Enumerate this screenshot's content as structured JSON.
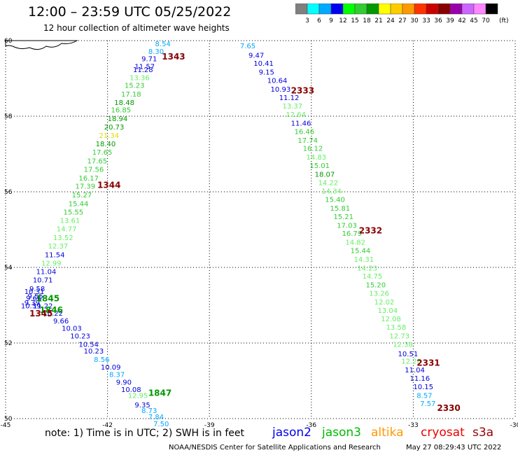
{
  "header": {
    "title": "12:00 – 23:59 UTC 05/25/2022",
    "subtitle": "12 hour collection of altimeter wave heights"
  },
  "legend": {
    "ticks": [
      "3",
      "6",
      "9",
      "12",
      "15",
      "18",
      "21",
      "24",
      "27",
      "30",
      "33",
      "36",
      "39",
      "42",
      "45",
      "70"
    ],
    "unit": "(ft)",
    "colors": [
      "#808080",
      "#00ffff",
      "#00aaff",
      "#0000ee",
      "#00ff00",
      "#33cc33",
      "#009900",
      "#ffff00",
      "#ffcc00",
      "#ff9900",
      "#ff3300",
      "#cc0000",
      "#880000",
      "#9900aa",
      "#cc66ff",
      "#ff88ff",
      "#000000"
    ]
  },
  "footer": {
    "note": "note:  1) Time is in UTC;  2) SWH is in feet",
    "credit": "NOAA/NESDIS Center for Satellite Applications and Research",
    "stamp": "May 27 08:29:43 UTC 2022"
  },
  "satellites": {
    "jason2": "jason2",
    "jason3": "jason3",
    "altika": "altika",
    "cryosat": "cryosat",
    "s3a": "s3a"
  },
  "chart_data": {
    "type": "scatter",
    "xlim": [
      -45,
      -30
    ],
    "ylim": [
      50,
      60
    ],
    "x_ticks": [
      -45,
      -42,
      -39,
      -36,
      -33,
      -30
    ],
    "y_ticks": [
      50,
      52,
      54,
      56,
      58,
      60
    ],
    "x_tick_labels": [
      "-45",
      "-42",
      "-39",
      "-36",
      "-33",
      "-30"
    ],
    "y_tick_labels": [
      "50",
      "52",
      "54",
      "56",
      "58",
      "60"
    ],
    "grid": true,
    "pass_labels": [
      {
        "label": "1343",
        "lon": -40.4,
        "lat": 59.5,
        "color": "#880000"
      },
      {
        "label": "1344",
        "lon": -42.3,
        "lat": 56.1,
        "color": "#880000"
      },
      {
        "label": "1845",
        "lon": -44.1,
        "lat": 53.1,
        "color": "#009900"
      },
      {
        "label": "1846",
        "lon": -44.0,
        "lat": 52.8,
        "color": "#009900"
      },
      {
        "label": "1345",
        "lon": -44.3,
        "lat": 52.7,
        "color": "#880000"
      },
      {
        "label": "1847",
        "lon": -40.8,
        "lat": 50.6,
        "color": "#009900"
      },
      {
        "label": "2333",
        "lon": -36.6,
        "lat": 58.6,
        "color": "#880000"
      },
      {
        "label": "2332",
        "lon": -34.6,
        "lat": 54.9,
        "color": "#880000"
      },
      {
        "label": "2331",
        "lon": -32.9,
        "lat": 51.4,
        "color": "#880000"
      },
      {
        "label": "2330",
        "lon": -32.3,
        "lat": 50.2,
        "color": "#880000"
      }
    ],
    "series": [
      {
        "points": [
          {
            "lon": -40.6,
            "lat": 59.85,
            "v": "8.54"
          },
          {
            "lon": -40.8,
            "lat": 59.65,
            "v": "8.30"
          },
          {
            "lon": -41.0,
            "lat": 59.45,
            "v": "9.71"
          },
          {
            "lon": -41.2,
            "lat": 59.25,
            "v": "11.57"
          },
          {
            "lon": -41.25,
            "lat": 59.17,
            "v": "11.28"
          },
          {
            "lon": -41.35,
            "lat": 58.95,
            "v": "13.36"
          },
          {
            "lon": -41.5,
            "lat": 58.75,
            "v": "15.23"
          },
          {
            "lon": -41.6,
            "lat": 58.52,
            "v": "17.18"
          },
          {
            "lon": -41.8,
            "lat": 58.3,
            "v": "18.48"
          },
          {
            "lon": -41.9,
            "lat": 58.1,
            "v": "16.85"
          },
          {
            "lon": -42.0,
            "lat": 57.87,
            "v": "18.94"
          },
          {
            "lon": -42.1,
            "lat": 57.65,
            "v": "20.73"
          },
          {
            "lon": -42.25,
            "lat": 57.43,
            "v": "21.34"
          },
          {
            "lon": -42.35,
            "lat": 57.2,
            "v": "18.40"
          },
          {
            "lon": -42.45,
            "lat": 56.98,
            "v": "17.65"
          },
          {
            "lon": -42.6,
            "lat": 56.75,
            "v": "17.65"
          },
          {
            "lon": -42.7,
            "lat": 56.53,
            "v": "17.56"
          },
          {
            "lon": -42.85,
            "lat": 56.3,
            "v": "16.17"
          },
          {
            "lon": -42.95,
            "lat": 56.08,
            "v": "17.39"
          },
          {
            "lon": -43.05,
            "lat": 55.85,
            "v": "15.27"
          },
          {
            "lon": -43.15,
            "lat": 55.62,
            "v": "15.44"
          },
          {
            "lon": -43.3,
            "lat": 55.4,
            "v": "15.55"
          },
          {
            "lon": -43.4,
            "lat": 55.18,
            "v": "13.61"
          },
          {
            "lon": -43.5,
            "lat": 54.95,
            "v": "14.77"
          },
          {
            "lon": -43.6,
            "lat": 54.72,
            "v": "13.52"
          },
          {
            "lon": -43.75,
            "lat": 54.5,
            "v": "12.37"
          },
          {
            "lon": -43.85,
            "lat": 54.27,
            "v": "11.54"
          },
          {
            "lon": -43.95,
            "lat": 54.05,
            "v": "12.99"
          },
          {
            "lon": -44.1,
            "lat": 53.82,
            "v": "11.04"
          },
          {
            "lon": -44.2,
            "lat": 53.6,
            "v": "10.71"
          },
          {
            "lon": -44.3,
            "lat": 53.37,
            "v": "9.58"
          },
          {
            "lon": -44.45,
            "lat": 53.3,
            "v": "10.31"
          },
          {
            "lon": -44.35,
            "lat": 53.18,
            "v": "9.55"
          },
          {
            "lon": -44.4,
            "lat": 53.12,
            "v": "9.66"
          },
          {
            "lon": -44.45,
            "lat": 53.0,
            "v": "9.39"
          },
          {
            "lon": -44.55,
            "lat": 52.92,
            "v": "10.39"
          },
          {
            "lon": -44.2,
            "lat": 52.92,
            "v": "11.22"
          },
          {
            "lon": -43.9,
            "lat": 52.72,
            "v": "10.22"
          },
          {
            "lon": -43.6,
            "lat": 52.52,
            "v": "9.66"
          },
          {
            "lon": -43.35,
            "lat": 52.32,
            "v": "10.03"
          },
          {
            "lon": -43.1,
            "lat": 52.12,
            "v": "10.23"
          },
          {
            "lon": -42.85,
            "lat": 51.9,
            "v": "10.54"
          },
          {
            "lon": -42.7,
            "lat": 51.72,
            "v": "10.23"
          },
          {
            "lon": -42.4,
            "lat": 51.5,
            "v": "8.56"
          },
          {
            "lon": -42.2,
            "lat": 51.3,
            "v": "10.09"
          },
          {
            "lon": -41.95,
            "lat": 51.1,
            "v": "8.37"
          },
          {
            "lon": -41.75,
            "lat": 50.9,
            "v": "9.90"
          },
          {
            "lon": -41.6,
            "lat": 50.7,
            "v": "10.08"
          },
          {
            "lon": -41.4,
            "lat": 50.55,
            "v": "12.95"
          },
          {
            "lon": -41.2,
            "lat": 50.3,
            "v": "9.35"
          },
          {
            "lon": -41.0,
            "lat": 50.15,
            "v": "8.73"
          },
          {
            "lon": -40.8,
            "lat": 49.98,
            "v": "7.84"
          },
          {
            "lon": -40.65,
            "lat": 49.8,
            "v": "7.50"
          }
        ]
      },
      {
        "points": [
          {
            "lon": -38.1,
            "lat": 59.8,
            "v": "7.65"
          },
          {
            "lon": -37.85,
            "lat": 59.55,
            "v": "9.47"
          },
          {
            "lon": -37.7,
            "lat": 59.33,
            "v": "10.41"
          },
          {
            "lon": -37.55,
            "lat": 59.1,
            "v": "9.15"
          },
          {
            "lon": -37.3,
            "lat": 58.88,
            "v": "10.64"
          },
          {
            "lon": -37.2,
            "lat": 58.65,
            "v": "10.93"
          },
          {
            "lon": -36.95,
            "lat": 58.43,
            "v": "11.12"
          },
          {
            "lon": -36.85,
            "lat": 58.2,
            "v": "13.37"
          },
          {
            "lon": -36.75,
            "lat": 57.98,
            "v": "12.64"
          },
          {
            "lon": -36.6,
            "lat": 57.75,
            "v": "11.46"
          },
          {
            "lon": -36.5,
            "lat": 57.53,
            "v": "16.46"
          },
          {
            "lon": -36.4,
            "lat": 57.3,
            "v": "17.74"
          },
          {
            "lon": -36.25,
            "lat": 57.08,
            "v": "16.12"
          },
          {
            "lon": -36.15,
            "lat": 56.85,
            "v": "14.83"
          },
          {
            "lon": -36.05,
            "lat": 56.63,
            "v": "15.01"
          },
          {
            "lon": -35.9,
            "lat": 56.4,
            "v": "18.07"
          },
          {
            "lon": -35.8,
            "lat": 56.18,
            "v": "14.22"
          },
          {
            "lon": -35.7,
            "lat": 55.95,
            "v": "14.34"
          },
          {
            "lon": -35.6,
            "lat": 55.73,
            "v": "15.40"
          },
          {
            "lon": -35.45,
            "lat": 55.5,
            "v": "15.81"
          },
          {
            "lon": -35.35,
            "lat": 55.28,
            "v": "15.21"
          },
          {
            "lon": -35.25,
            "lat": 55.05,
            "v": "17.03"
          },
          {
            "lon": -35.1,
            "lat": 54.83,
            "v": "16.79"
          },
          {
            "lon": -35.0,
            "lat": 54.6,
            "v": "14.82"
          },
          {
            "lon": -34.85,
            "lat": 54.38,
            "v": "15.44"
          },
          {
            "lon": -34.75,
            "lat": 54.15,
            "v": "14.31"
          },
          {
            "lon": -34.65,
            "lat": 53.92,
            "v": "14.23"
          },
          {
            "lon": -34.5,
            "lat": 53.7,
            "v": "14.75"
          },
          {
            "lon": -34.4,
            "lat": 53.47,
            "v": "15.20"
          },
          {
            "lon": -34.3,
            "lat": 53.25,
            "v": "13.26"
          },
          {
            "lon": -34.15,
            "lat": 53.02,
            "v": "12.02"
          },
          {
            "lon": -34.05,
            "lat": 52.8,
            "v": "13.04"
          },
          {
            "lon": -33.95,
            "lat": 52.57,
            "v": "12.08"
          },
          {
            "lon": -33.8,
            "lat": 52.35,
            "v": "13.58"
          },
          {
            "lon": -33.7,
            "lat": 52.12,
            "v": "12.73"
          },
          {
            "lon": -33.6,
            "lat": 51.9,
            "v": "12.38"
          },
          {
            "lon": -33.45,
            "lat": 51.65,
            "v": "10.51"
          },
          {
            "lon": -33.35,
            "lat": 51.45,
            "v": "12.28"
          },
          {
            "lon": -33.25,
            "lat": 51.22,
            "v": "11.04"
          },
          {
            "lon": -33.1,
            "lat": 51.0,
            "v": "11.16"
          },
          {
            "lon": -33.0,
            "lat": 50.78,
            "v": "10.15"
          },
          {
            "lon": -32.9,
            "lat": 50.55,
            "v": "8.57"
          },
          {
            "lon": -32.8,
            "lat": 50.33,
            "v": "7.57"
          }
        ]
      }
    ]
  }
}
